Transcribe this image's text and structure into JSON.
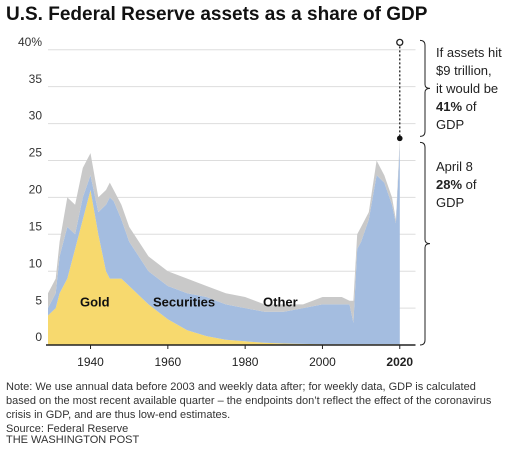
{
  "chart_data": {
    "type": "stacked_area",
    "title": "U.S. Federal Reserve assets as a share of GDP",
    "x": [
      1929,
      1931,
      1932,
      1934,
      1936,
      1938,
      1940,
      1942,
      1944,
      1945,
      1946,
      1948,
      1950,
      1955,
      1960,
      1965,
      1970,
      1975,
      1980,
      1985,
      1990,
      1995,
      2000,
      2005,
      2007,
      2008,
      2009,
      2010,
      2012,
      2014,
      2015,
      2016,
      2018,
      2019,
      2020
    ],
    "series": [
      {
        "name": "Gold",
        "color": "#f7d96e",
        "values": [
          4,
          5,
          7,
          9,
          13,
          17,
          21,
          15,
          10,
          9,
          9,
          9,
          8,
          5.5,
          3.5,
          2,
          1.2,
          0.7,
          0.5,
          0.3,
          0.2,
          0.15,
          0.1,
          0.1,
          0.1,
          0.1,
          0.1,
          0.1,
          0.1,
          0.1,
          0.1,
          0.1,
          0.1,
          0.1,
          0.1
        ]
      },
      {
        "name": "Securities",
        "color": "#a4bde0",
        "values": [
          1,
          2,
          5,
          7,
          2,
          3,
          2,
          3,
          9,
          11,
          10.5,
          8,
          6,
          4.5,
          4.5,
          5,
          5.3,
          4.8,
          4.5,
          4.2,
          4.3,
          4.85,
          5.4,
          5.4,
          5.4,
          2.9,
          12.9,
          13.9,
          16.9,
          22.9,
          22.4,
          21.9,
          18.9,
          16.4,
          26.9
        ]
      },
      {
        "name": "Other",
        "color": "#c9c9c9",
        "values": [
          2,
          2,
          2,
          4,
          4,
          4,
          3,
          2,
          2,
          2,
          1.5,
          2,
          2,
          2,
          2,
          2,
          1.5,
          1.5,
          1.5,
          1,
          1,
          0.5,
          1,
          1,
          0.5,
          3,
          2,
          2,
          1,
          2,
          1.5,
          1,
          1,
          0.5,
          1
        ]
      }
    ],
    "xlim": [
      1929,
      2022
    ],
    "xticks": [
      1940,
      1960,
      1980,
      2000,
      2020
    ],
    "ylim": [
      0,
      42
    ],
    "yticks": [
      0,
      5,
      10,
      15,
      20,
      25,
      30,
      35,
      {
        "value": 40,
        "label": "40%"
      }
    ],
    "grid": true,
    "annotations": [
      {
        "x": 2020,
        "value": 41,
        "value_label": "41%",
        "before": [
          "If assets hit",
          "$9 trillion,",
          "it would be"
        ],
        "after": [
          "of",
          "GDP"
        ]
      },
      {
        "x": 2020,
        "value": 28,
        "value_label": "28%",
        "before": [
          "April 8"
        ],
        "after": [
          "of",
          "GDP"
        ]
      }
    ],
    "note": "Note: We use annual data before 2003 and weekly data after; for weekly data, GDP is calculated based on the most recent available quarter – the endpoints don’t reflect the effect of the coronavirus crisis in GDP, and are thus low-end estimates.",
    "source": "Source: Federal Reserve",
    "publisher": "THE WASHINGTON POST"
  }
}
